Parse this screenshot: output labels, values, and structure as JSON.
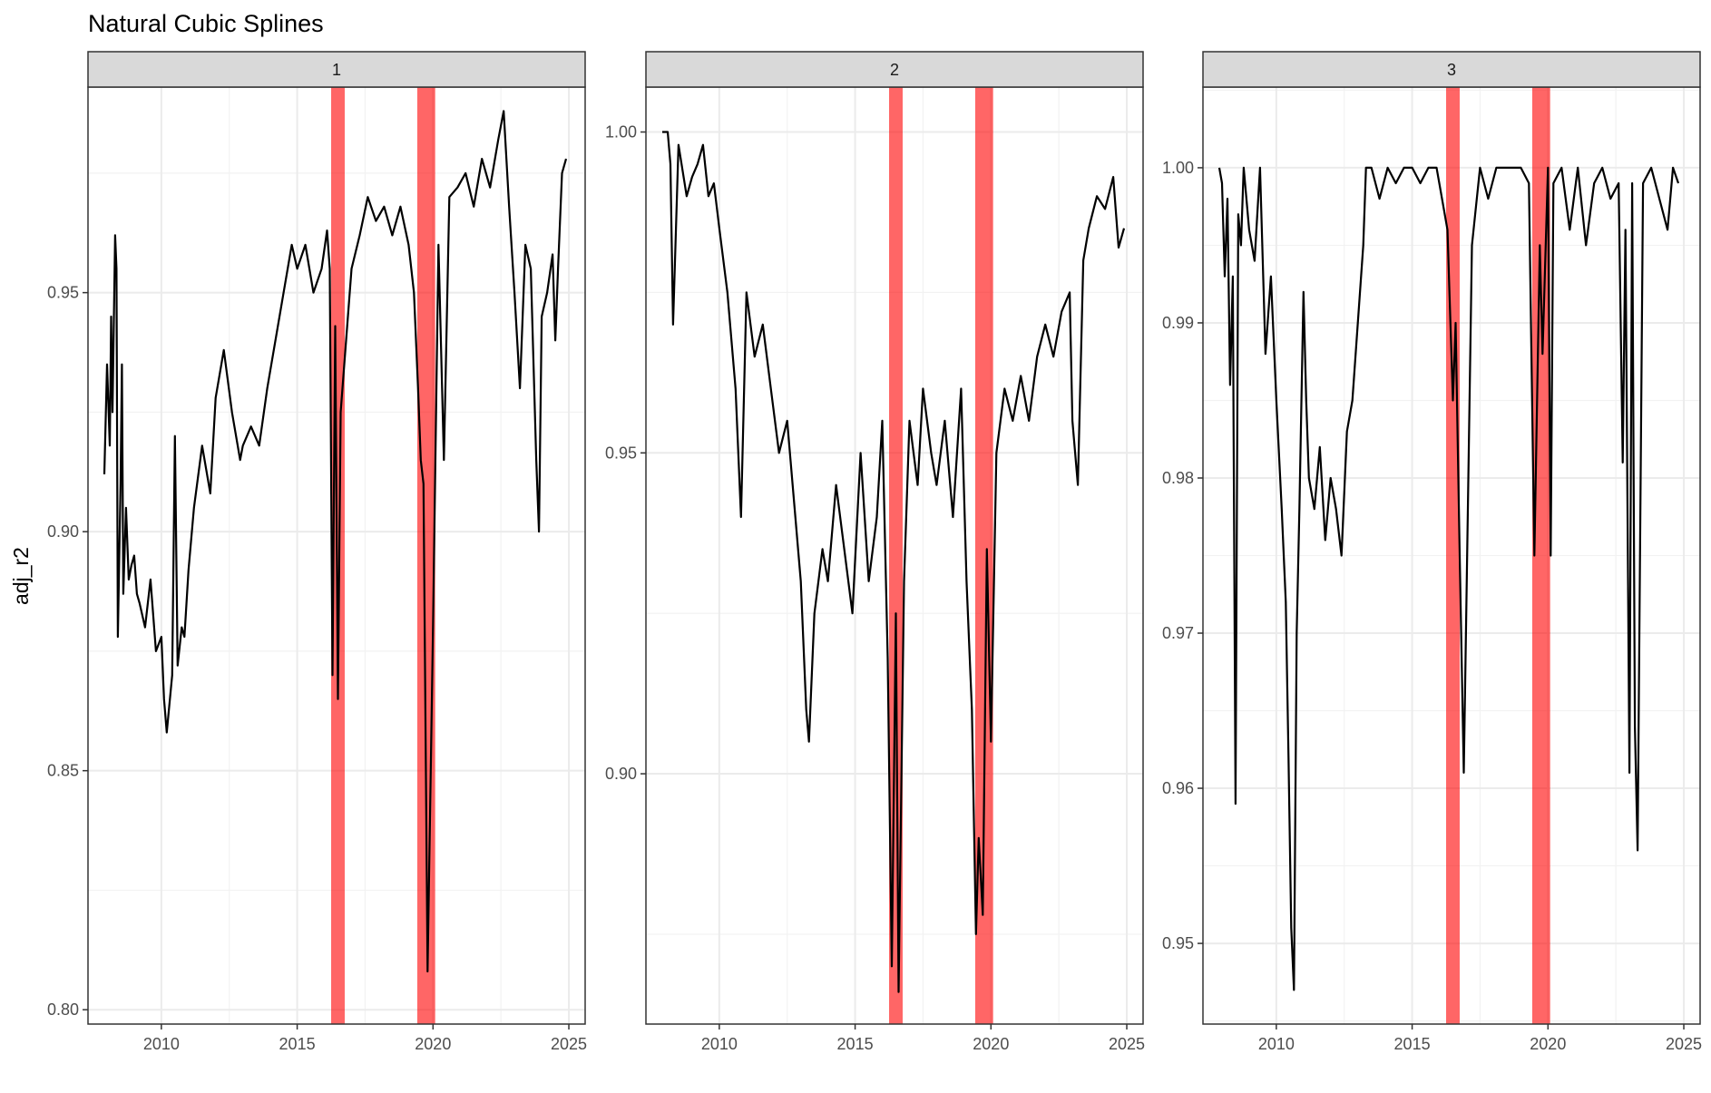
{
  "chart_data": {
    "type": "line",
    "title": "Natural Cubic Splines",
    "xlabel": "",
    "ylabel": "adj_r2",
    "theme": "bw",
    "grid": true,
    "line_color": "#000000",
    "band_color": "#ff0000",
    "band_opacity": 0.6,
    "x_ticks": [
      2010,
      2015,
      2020,
      2025
    ],
    "xlim": [
      2007.3,
      2025.6
    ],
    "shaded_intervals": [
      [
        2016.25,
        2016.75
      ],
      [
        2019.42,
        2020.08
      ]
    ],
    "panels": [
      {
        "label": "1",
        "ylim": [
          0.797,
          0.993
        ],
        "y_ticks": [
          0.8,
          0.85,
          0.9,
          0.95
        ],
        "y_tick_labels": [
          "0.80",
          "0.85",
          "0.90",
          "0.95"
        ],
        "x": [
          2007.9,
          2008.0,
          2008.1,
          2008.15,
          2008.2,
          2008.3,
          2008.35,
          2008.4,
          2008.5,
          2008.55,
          2008.6,
          2008.7,
          2008.8,
          2008.9,
          2009.0,
          2009.1,
          2009.2,
          2009.4,
          2009.6,
          2009.8,
          2010.0,
          2010.1,
          2010.2,
          2010.4,
          2010.5,
          2010.6,
          2010.75,
          2010.85,
          2011.0,
          2011.2,
          2011.5,
          2011.8,
          2012.0,
          2012.3,
          2012.6,
          2012.9,
          2013.0,
          2013.3,
          2013.6,
          2013.9,
          2014.2,
          2014.5,
          2014.8,
          2015.0,
          2015.3,
          2015.6,
          2015.9,
          2016.1,
          2016.2,
          2016.3,
          2016.4,
          2016.5,
          2016.6,
          2016.8,
          2017.0,
          2017.3,
          2017.6,
          2017.9,
          2018.2,
          2018.5,
          2018.8,
          2019.1,
          2019.3,
          2019.45,
          2019.55,
          2019.65,
          2019.8,
          2020.0,
          2020.2,
          2020.4,
          2020.6,
          2020.9,
          2021.2,
          2021.5,
          2021.8,
          2022.1,
          2022.4,
          2022.6,
          2022.8,
          2023.0,
          2023.2,
          2023.4,
          2023.6,
          2023.8,
          2023.9,
          2024.0,
          2024.2,
          2024.4,
          2024.5,
          2024.6,
          2024.75,
          2024.9
        ],
        "y": [
          0.912,
          0.935,
          0.918,
          0.945,
          0.925,
          0.962,
          0.955,
          0.878,
          0.91,
          0.935,
          0.887,
          0.905,
          0.89,
          0.893,
          0.895,
          0.887,
          0.885,
          0.88,
          0.89,
          0.875,
          0.878,
          0.865,
          0.858,
          0.87,
          0.92,
          0.872,
          0.88,
          0.878,
          0.892,
          0.905,
          0.918,
          0.908,
          0.928,
          0.938,
          0.925,
          0.915,
          0.918,
          0.922,
          0.918,
          0.93,
          0.94,
          0.95,
          0.96,
          0.955,
          0.96,
          0.95,
          0.955,
          0.963,
          0.955,
          0.87,
          0.943,
          0.865,
          0.925,
          0.94,
          0.955,
          0.962,
          0.97,
          0.965,
          0.968,
          0.962,
          0.968,
          0.96,
          0.95,
          0.93,
          0.915,
          0.91,
          0.808,
          0.88,
          0.96,
          0.915,
          0.97,
          0.972,
          0.975,
          0.968,
          0.978,
          0.972,
          0.982,
          0.988,
          0.968,
          0.95,
          0.93,
          0.96,
          0.955,
          0.915,
          0.9,
          0.945,
          0.95,
          0.958,
          0.94,
          0.955,
          0.975,
          0.978
        ]
      },
      {
        "label": "2",
        "ylim": [
          0.861,
          1.007
        ],
        "y_ticks": [
          0.9,
          0.95,
          1.0
        ],
        "y_tick_labels": [
          "0.90",
          "0.95",
          "1.00"
        ],
        "x": [
          2007.9,
          2008.1,
          2008.2,
          2008.3,
          2008.5,
          2008.8,
          2009.0,
          2009.2,
          2009.4,
          2009.6,
          2009.8,
          2010.0,
          2010.3,
          2010.6,
          2010.8,
          2011.0,
          2011.3,
          2011.6,
          2011.9,
          2012.2,
          2012.5,
          2012.8,
          2013.0,
          2013.2,
          2013.3,
          2013.5,
          2013.8,
          2014.0,
          2014.3,
          2014.6,
          2014.9,
          2015.2,
          2015.5,
          2015.8,
          2016.0,
          2016.2,
          2016.35,
          2016.5,
          2016.6,
          2016.8,
          2017.0,
          2017.3,
          2017.5,
          2017.8,
          2018.0,
          2018.3,
          2018.6,
          2018.9,
          2019.1,
          2019.3,
          2019.45,
          2019.55,
          2019.7,
          2019.85,
          2020.0,
          2020.2,
          2020.5,
          2020.8,
          2021.1,
          2021.4,
          2021.7,
          2022.0,
          2022.3,
          2022.6,
          2022.9,
          2023.0,
          2023.2,
          2023.4,
          2023.6,
          2023.9,
          2024.2,
          2024.5,
          2024.7,
          2024.9
        ],
        "y": [
          1.0,
          1.0,
          0.995,
          0.97,
          0.998,
          0.99,
          0.993,
          0.995,
          0.998,
          0.99,
          0.992,
          0.985,
          0.975,
          0.96,
          0.94,
          0.975,
          0.965,
          0.97,
          0.96,
          0.95,
          0.955,
          0.94,
          0.93,
          0.91,
          0.905,
          0.925,
          0.935,
          0.93,
          0.945,
          0.935,
          0.925,
          0.95,
          0.93,
          0.94,
          0.955,
          0.918,
          0.87,
          0.925,
          0.866,
          0.93,
          0.955,
          0.945,
          0.96,
          0.95,
          0.945,
          0.955,
          0.94,
          0.96,
          0.93,
          0.91,
          0.875,
          0.89,
          0.878,
          0.935,
          0.905,
          0.95,
          0.96,
          0.955,
          0.962,
          0.955,
          0.965,
          0.97,
          0.965,
          0.972,
          0.975,
          0.955,
          0.945,
          0.98,
          0.985,
          0.99,
          0.988,
          0.993,
          0.982,
          0.985
        ]
      },
      {
        "label": "3",
        "ylim": [
          0.9448,
          1.0052
        ],
        "y_ticks": [
          0.95,
          0.96,
          0.97,
          0.98,
          0.99,
          1.0
        ],
        "y_tick_labels": [
          "0.95",
          "0.96",
          "0.97",
          "0.98",
          "0.99",
          "1.00"
        ],
        "x": [
          2007.9,
          2008.0,
          2008.1,
          2008.2,
          2008.3,
          2008.4,
          2008.5,
          2008.6,
          2008.7,
          2008.8,
          2009.0,
          2009.2,
          2009.4,
          2009.6,
          2009.8,
          2010.0,
          2010.2,
          2010.35,
          2010.45,
          2010.55,
          2010.65,
          2010.75,
          2010.85,
          2011.0,
          2011.1,
          2011.2,
          2011.4,
          2011.6,
          2011.8,
          2012.0,
          2012.2,
          2012.4,
          2012.6,
          2012.8,
          2013.0,
          2013.2,
          2013.3,
          2013.5,
          2013.8,
          2014.1,
          2014.4,
          2014.7,
          2015.0,
          2015.3,
          2015.6,
          2015.9,
          2016.1,
          2016.3,
          2016.5,
          2016.6,
          2016.75,
          2016.9,
          2017.2,
          2017.5,
          2017.8,
          2018.1,
          2018.4,
          2018.7,
          2019.0,
          2019.3,
          2019.5,
          2019.7,
          2019.8,
          2020.0,
          2020.1,
          2020.2,
          2020.5,
          2020.8,
          2021.1,
          2021.4,
          2021.7,
          2022.0,
          2022.3,
          2022.6,
          2022.75,
          2022.85,
          2023.0,
          2023.1,
          2023.2,
          2023.3,
          2023.5,
          2023.8,
          2024.1,
          2024.4,
          2024.6,
          2024.8
        ],
        "y": [
          1.0,
          0.999,
          0.993,
          0.998,
          0.986,
          0.993,
          0.959,
          0.997,
          0.995,
          1.0,
          0.996,
          0.994,
          1.0,
          0.988,
          0.993,
          0.985,
          0.978,
          0.972,
          0.962,
          0.951,
          0.947,
          0.97,
          0.978,
          0.992,
          0.985,
          0.98,
          0.978,
          0.982,
          0.976,
          0.98,
          0.978,
          0.975,
          0.983,
          0.985,
          0.99,
          0.995,
          1.0,
          1.0,
          0.998,
          1.0,
          0.999,
          1.0,
          1.0,
          0.999,
          1.0,
          1.0,
          0.998,
          0.996,
          0.985,
          0.99,
          0.975,
          0.961,
          0.995,
          1.0,
          0.998,
          1.0,
          1.0,
          1.0,
          1.0,
          0.999,
          0.975,
          0.995,
          0.988,
          1.0,
          0.975,
          0.999,
          1.0,
          0.996,
          1.0,
          0.995,
          0.999,
          1.0,
          0.998,
          0.999,
          0.981,
          0.996,
          0.961,
          0.999,
          0.964,
          0.956,
          0.999,
          1.0,
          0.998,
          0.996,
          1.0,
          0.999
        ]
      }
    ]
  }
}
